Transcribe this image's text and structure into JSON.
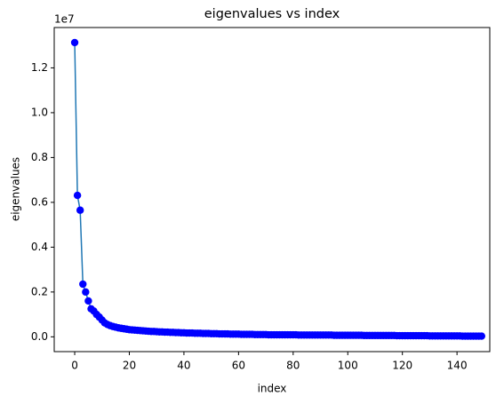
{
  "chart_data": {
    "type": "line_scatter",
    "title": "eigenvalues vs index",
    "xlabel": "index",
    "ylabel": "eigenvalues",
    "y_offset_text": "1e7",
    "line_color": "#1f77b4",
    "marker_color": "#0000ff",
    "x": [
      0,
      1,
      2,
      3,
      4,
      5,
      6,
      7,
      8,
      9,
      10,
      11,
      12,
      13,
      14,
      15,
      16,
      17,
      18,
      19,
      20,
      21,
      22,
      23,
      24,
      25,
      26,
      27,
      28,
      29,
      30,
      31,
      32,
      33,
      34,
      35,
      36,
      37,
      38,
      39,
      40,
      41,
      42,
      43,
      44,
      45,
      46,
      47,
      48,
      49,
      50,
      51,
      52,
      53,
      54,
      55,
      56,
      57,
      58,
      59,
      60,
      61,
      62,
      63,
      64,
      65,
      66,
      67,
      68,
      69,
      70,
      71,
      72,
      73,
      74,
      75,
      76,
      77,
      78,
      79,
      80,
      81,
      82,
      83,
      84,
      85,
      86,
      87,
      88,
      89,
      90,
      91,
      92,
      93,
      94,
      95,
      96,
      97,
      98,
      99,
      100,
      101,
      102,
      103,
      104,
      105,
      106,
      107,
      108,
      109,
      110,
      111,
      112,
      113,
      114,
      115,
      116,
      117,
      118,
      119,
      120,
      121,
      122,
      123,
      124,
      125,
      126,
      127,
      128,
      129,
      130,
      131,
      132,
      133,
      134,
      135,
      136,
      137,
      138,
      139,
      140,
      141,
      142,
      143,
      144,
      145,
      146,
      147,
      148,
      149
    ],
    "values": [
      1.313,
      0.631,
      0.565,
      0.235,
      0.2,
      0.16,
      0.125,
      0.115,
      0.1,
      0.088,
      0.075,
      0.062,
      0.055,
      0.05,
      0.046,
      0.043,
      0.04,
      0.038,
      0.036,
      0.034,
      0.032,
      0.031,
      0.03,
      0.029,
      0.028,
      0.027,
      0.026,
      0.025,
      0.024,
      0.024,
      0.023,
      0.022,
      0.022,
      0.021,
      0.021,
      0.02,
      0.02,
      0.019,
      0.019,
      0.018,
      0.018,
      0.017,
      0.017,
      0.017,
      0.016,
      0.016,
      0.016,
      0.015,
      0.015,
      0.015,
      0.014,
      0.014,
      0.014,
      0.013,
      0.013,
      0.013,
      0.013,
      0.012,
      0.012,
      0.012,
      0.012,
      0.011,
      0.011,
      0.011,
      0.011,
      0.011,
      0.01,
      0.01,
      0.01,
      0.01,
      0.01,
      0.009,
      0.009,
      0.009,
      0.009,
      0.009,
      0.009,
      0.009,
      0.009,
      0.009,
      0.009,
      0.009,
      0.008,
      0.008,
      0.008,
      0.008,
      0.008,
      0.008,
      0.008,
      0.008,
      0.008,
      0.008,
      0.008,
      0.008,
      0.008,
      0.007,
      0.007,
      0.007,
      0.007,
      0.007,
      0.007,
      0.007,
      0.007,
      0.007,
      0.007,
      0.007,
      0.006,
      0.006,
      0.006,
      0.006,
      0.006,
      0.006,
      0.006,
      0.006,
      0.006,
      0.006,
      0.006,
      0.006,
      0.005,
      0.005,
      0.005,
      0.005,
      0.005,
      0.005,
      0.005,
      0.005,
      0.005,
      0.005,
      0.005,
      0.005,
      0.004,
      0.004,
      0.004,
      0.004,
      0.004,
      0.004,
      0.004,
      0.004,
      0.004,
      0.004,
      0.004,
      0.004,
      0.003,
      0.003,
      0.003,
      0.003,
      0.003,
      0.003,
      0.003,
      0.003
    ],
    "xlim": [
      -7.5,
      152
    ],
    "ylim": [
      -0.066,
      1.38
    ],
    "xticks": [
      0,
      20,
      40,
      60,
      80,
      100,
      120,
      140
    ],
    "yticks": [
      {
        "value": 0,
        "label": "0.0"
      },
      0.2,
      0.4,
      0.6,
      0.8,
      {
        "value": 1,
        "label": "1.0"
      },
      1.2
    ]
  }
}
